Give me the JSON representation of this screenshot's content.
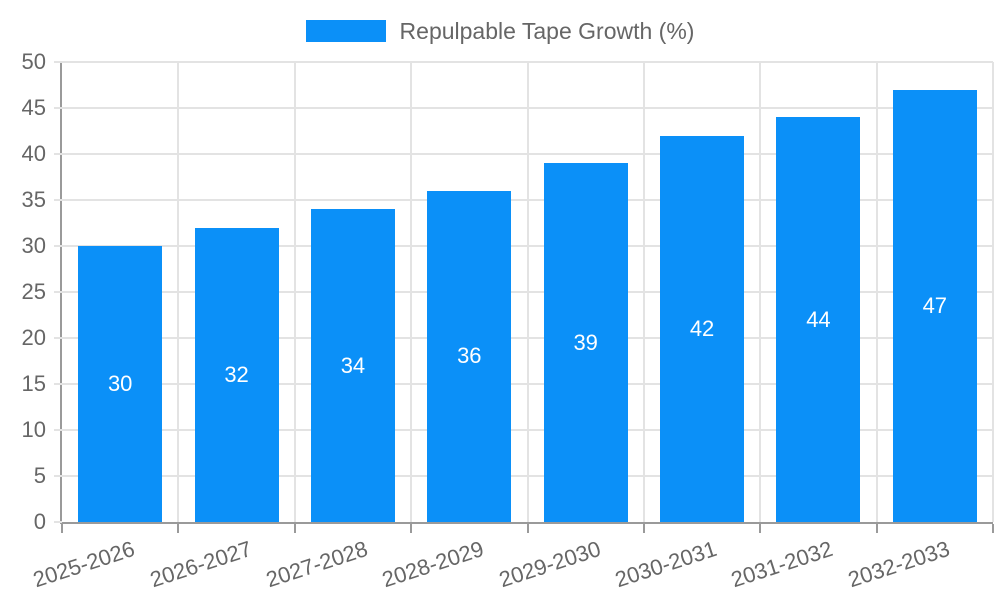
{
  "chart_data": {
    "type": "bar",
    "title": "",
    "series_name": "Repulpable Tape Growth (%)",
    "categories": [
      "2025-2026",
      "2026-2027",
      "2027-2028",
      "2028-2029",
      "2029-2030",
      "2030-2031",
      "2031-2032",
      "2032-2033"
    ],
    "values": [
      30,
      32,
      34,
      36,
      39,
      42,
      44,
      47
    ],
    "xlabel": "",
    "ylabel": "",
    "ylim": [
      0,
      50
    ],
    "ytick_step": 5,
    "ytick_labels": [
      "0",
      "5",
      "10",
      "15",
      "20",
      "25",
      "30",
      "35",
      "40",
      "45",
      "50"
    ],
    "grid": true,
    "legend_position": "top",
    "colors": {
      "bar": "#0b90f8",
      "grid": "#e3e3e3",
      "axis": "#9a9a9a",
      "tick_text": "#666666",
      "bar_label_text": "#ffffff",
      "legend_text": "#666666",
      "background": "#ffffff"
    }
  }
}
